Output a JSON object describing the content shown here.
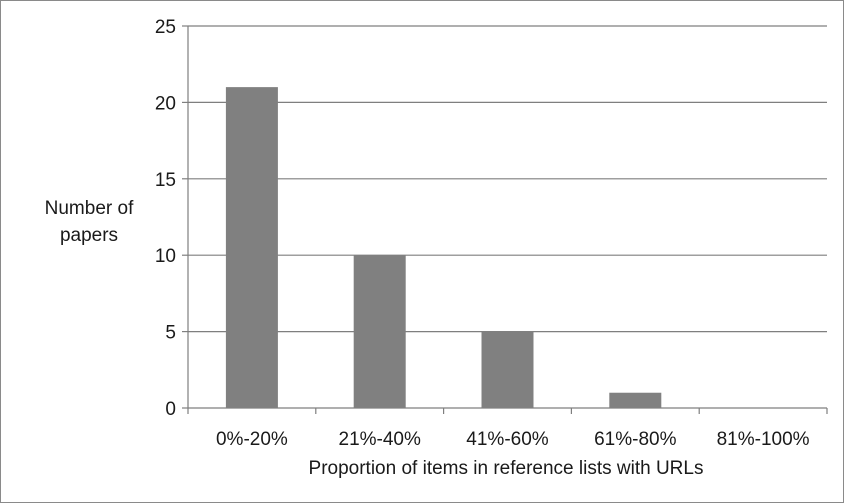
{
  "chart_data": {
    "type": "bar",
    "categories": [
      "0%-20%",
      "21%-40%",
      "41%-60%",
      "61%-80%",
      "81%-100%"
    ],
    "values": [
      21,
      10,
      5,
      1,
      0
    ],
    "ylabel_lines": [
      "Number of",
      "papers"
    ],
    "xlabel": "Proportion of items in reference lists with URLs",
    "ylim": [
      0,
      25
    ],
    "yticks": [
      0,
      5,
      10,
      15,
      20,
      25
    ],
    "grid": true,
    "bar_color": "#808080"
  }
}
